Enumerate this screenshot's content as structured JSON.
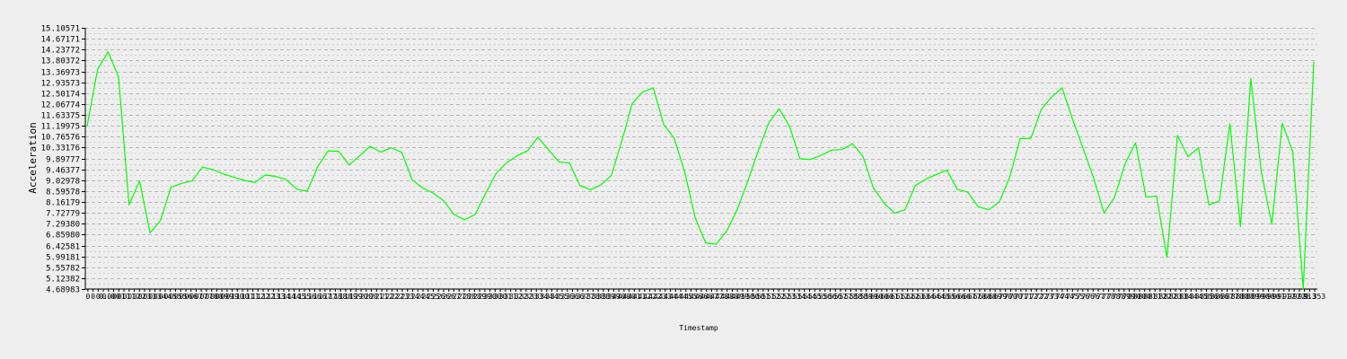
{
  "chart_data": {
    "type": "line",
    "xlabel": "Timestamp",
    "ylabel": "Acceleration",
    "ylim": [
      4.68983,
      15.10571
    ],
    "y_ticks": [
      "4.68983",
      "5.12382",
      "5.55782",
      "5.99181",
      "6.42581",
      "6.85980",
      "7.29380",
      "7.72779",
      "8.16179",
      "8.59578",
      "9.02978",
      "9.46377",
      "9.89777",
      "10.33176",
      "10.76576",
      "11.19975",
      "11.63375",
      "12.06774",
      "12.50174",
      "12.93573",
      "13.36973",
      "13.80372",
      "14.23772",
      "14.67171",
      "15.10571"
    ],
    "x_tick_labels": [
      "0",
      "0",
      "0",
      "0.",
      "0.0",
      "0.0",
      "0.1",
      "0.1",
      "0.1",
      "0.2",
      "0.2",
      "0.3",
      "0.3",
      "0.3",
      "0.4",
      "0.4",
      "0.5",
      "0.5",
      "0.5",
      "0.6",
      "0.6",
      "0.7",
      "0.7",
      "0.7",
      "0.8",
      "0.8",
      "0.9",
      "0.9",
      "0.9",
      "1.0",
      "1.0",
      "1.1",
      "1.1",
      "1.2",
      "1.2",
      "1.2",
      "1.3",
      "1.3",
      "1.4",
      "1.4",
      "1.4",
      "1.5",
      "1.5",
      "1.6",
      "1.6",
      "1.6",
      "1.7",
      "1.7",
      "1.8",
      "1.8",
      "1.8",
      "1.9",
      "1.9",
      "2.0",
      "2.0",
      "2.0",
      "2.1",
      "2.1",
      "2.2",
      "2.2",
      "2.2",
      "2.3",
      "2.3",
      "2.4",
      "2.4",
      "2.4",
      "2.5",
      "2.5",
      "2.6",
      "2.6",
      "2.6",
      "2.7",
      "2.7",
      "2.8",
      "2.8",
      "2.8",
      "2.9",
      "2.9",
      "3.0",
      "3.0",
      "3.0",
      "3.1",
      "3.1",
      "3.2",
      "3.2",
      "3.2",
      "3.3",
      "3.3",
      "3.4",
      "3.4",
      "3.4",
      "3.5",
      "3.5",
      "3.6",
      "3.6",
      "3.6",
      "3.7",
      "3.7",
      "3.8",
      "3.8",
      "3.8",
      "3.9",
      "3.9",
      "4.0",
      "4.0",
      "4.0",
      "4.1",
      "4.1",
      "4.2",
      "4.2",
      "4.2",
      "4.3",
      "4.3",
      "4.4",
      "4.4",
      "4.4",
      "4.5",
      "4.5",
      "4.6",
      "4.6",
      "4.6",
      "4.7",
      "4.7",
      "4.8",
      "4.8",
      "4.8",
      "4.9",
      "4.9",
      "5.0",
      "5.0",
      "5.0",
      "5.1",
      "5.1",
      "5.2",
      "5.2",
      "5.2",
      "5.3",
      "5.3",
      "5.4",
      "5.4",
      "5.4",
      "5.5",
      "5.5",
      "5.6",
      "5.6",
      "5.6",
      "5.7",
      "5.7",
      "5.8",
      "5.8",
      "5.8",
      "5.9",
      "5.9",
      "6.0",
      "6.0",
      "6.0",
      "6.1",
      "6.1",
      "6.2",
      "6.2",
      "6.2",
      "6.3",
      "6.3",
      "6.4",
      "6.4",
      "6.4",
      "6.5",
      "6.5",
      "6.6",
      "6.6",
      "6.6",
      "6.7",
      "6.7",
      "6.8",
      "6.8",
      "6.8",
      "6.9",
      "6.9",
      "7.0",
      "7.0",
      "7.0",
      "7.1",
      "7.1",
      "7.2",
      "7.2",
      "7.2",
      "7.3",
      "7.3",
      "7.4",
      "7.4",
      "7.4",
      "7.5",
      "7.5",
      "7.6",
      "7.6",
      "7.6",
      "7.7",
      "7.7",
      "7.8",
      "7.8",
      "7.8",
      "7.9",
      "7.9",
      "8.0",
      "8.0",
      "8.0",
      "8.1",
      "8.1",
      "8.2",
      "8.2",
      "8.2",
      "8.3",
      "8.3",
      "8.4",
      "8.4",
      "8.4",
      "8.5",
      "8.5",
      "8.6",
      "8.6",
      "8.6",
      "8.7",
      "8.7",
      "8.8",
      "8.8",
      "8.8",
      "8.9",
      "8.9",
      "9.0",
      "9.0",
      "9.0",
      "9.1",
      "9.1",
      "9.2",
      "9.2",
      "9.2",
      "9.3",
      "9.3",
      "9.353"
    ],
    "grid": true,
    "series": [
      {
        "color": "#00ff00",
        "values": [
          11.19,
          13.45,
          14.15,
          13.15,
          8.04,
          9.0,
          6.93,
          7.42,
          8.75,
          8.9,
          9.0,
          9.55,
          9.45,
          9.27,
          9.15,
          9.02,
          8.94,
          9.24,
          9.18,
          9.05,
          8.67,
          8.59,
          9.58,
          10.2,
          10.18,
          9.64,
          10.01,
          10.38,
          10.15,
          10.32,
          10.15,
          9.05,
          8.72,
          8.52,
          8.21,
          7.66,
          7.45,
          7.66,
          8.5,
          9.29,
          9.72,
          10.0,
          10.2,
          10.74,
          10.25,
          9.76,
          9.71,
          8.82,
          8.65,
          8.84,
          9.22,
          10.59,
          12.09,
          12.55,
          12.71,
          11.25,
          10.7,
          9.35,
          7.53,
          6.53,
          6.48,
          7.0,
          7.85,
          8.97,
          10.18,
          11.3,
          11.88,
          11.18,
          9.88,
          9.86,
          10.02,
          10.23,
          10.25,
          10.49,
          9.98,
          8.72,
          8.12,
          7.72,
          7.85,
          8.82,
          9.07,
          9.26,
          9.43,
          8.67,
          8.55,
          7.97,
          7.85,
          8.16,
          9.15,
          10.69,
          10.69,
          11.84,
          12.35,
          12.71,
          11.45,
          10.3,
          9.12,
          7.72,
          8.35,
          9.68,
          10.52,
          8.35,
          8.4,
          5.95,
          10.81,
          9.97,
          10.32,
          8.04,
          8.21,
          11.28,
          7.18,
          13.08,
          9.35,
          7.28,
          11.3,
          10.16,
          4.7,
          13.75
        ]
      }
    ]
  }
}
